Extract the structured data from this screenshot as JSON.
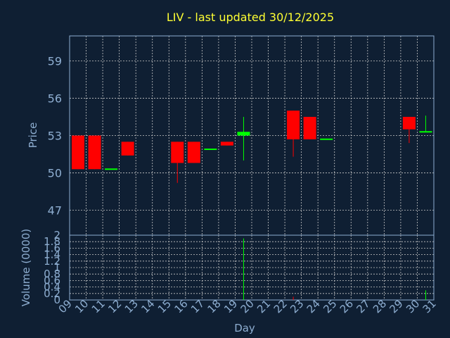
{
  "colors": {
    "background": "#0f1f33",
    "title": "#ffff33",
    "axis_text": "#8eaed1",
    "frame": "#8eaed1",
    "grid": "#c8c8c8",
    "up": "#00ff00",
    "down": "#ff0000"
  },
  "chart_data": {
    "type": "candlestick",
    "title": "LIV - last updated 30/12/2025",
    "price_panel": {
      "ylabel": "Price",
      "ylim": [
        45,
        61
      ],
      "yticks": [
        47,
        50,
        53,
        56,
        59
      ],
      "grid": true
    },
    "volume_panel": {
      "ylabel": "Volume (0000)",
      "ylim": [
        0,
        2
      ],
      "yticks": [
        0,
        0.2,
        0.4,
        0.6,
        0.8,
        1,
        1.2,
        1.4,
        1.6,
        1.8,
        2
      ],
      "ytick_labels": [
        "0",
        "0.2",
        "0.4",
        "0.6",
        "0.8",
        "1",
        "1.2",
        "1.4",
        "1.6",
        "1.8",
        "2"
      ],
      "grid": true
    },
    "xlabel": "Day",
    "xlim": [
      9,
      31
    ],
    "xticks": [
      9,
      10,
      11,
      12,
      13,
      14,
      15,
      16,
      17,
      18,
      19,
      20,
      21,
      22,
      23,
      24,
      25,
      26,
      27,
      28,
      29,
      30,
      31
    ],
    "xtick_labels": [
      "09",
      "10",
      "11",
      "12",
      "13",
      "14",
      "15",
      "16",
      "17",
      "18",
      "19",
      "20",
      "21",
      "22",
      "23",
      "24",
      "25",
      "26",
      "27",
      "28",
      "29",
      "30",
      "31"
    ],
    "candles": [
      {
        "day": 9,
        "open": 53.0,
        "high": 53.0,
        "low": 50.3,
        "close": 50.3,
        "volume": 0.0
      },
      {
        "day": 10,
        "open": 53.0,
        "high": 53.0,
        "low": 50.3,
        "close": 50.3,
        "volume": 0.0
      },
      {
        "day": 11,
        "open": 50.3,
        "high": 50.3,
        "low": 50.3,
        "close": 50.3,
        "volume": 0.0
      },
      {
        "day": 12,
        "open": 52.5,
        "high": 52.5,
        "low": 51.4,
        "close": 51.4,
        "volume": 0.0
      },
      {
        "day": 15,
        "open": 52.5,
        "high": 52.5,
        "low": 49.2,
        "close": 50.8,
        "volume": 0.0
      },
      {
        "day": 16,
        "open": 52.5,
        "high": 52.5,
        "low": 50.8,
        "close": 50.8,
        "volume": 0.0
      },
      {
        "day": 17,
        "open": 51.9,
        "high": 51.9,
        "low": 51.9,
        "close": 51.9,
        "volume": 0.0
      },
      {
        "day": 18,
        "open": 52.5,
        "high": 52.5,
        "low": 52.2,
        "close": 52.2,
        "volume": 0.0
      },
      {
        "day": 19,
        "open": 53.0,
        "high": 54.5,
        "low": 51.0,
        "close": 53.3,
        "volume": 1.9
      },
      {
        "day": 22,
        "open": 55.0,
        "high": 55.0,
        "low": 51.3,
        "close": 52.7,
        "volume": 0.1
      },
      {
        "day": 23,
        "open": 54.5,
        "high": 54.5,
        "low": 52.7,
        "close": 52.7,
        "volume": 0.0
      },
      {
        "day": 24,
        "open": 52.7,
        "high": 52.7,
        "low": 52.7,
        "close": 52.7,
        "volume": 0.0
      },
      {
        "day": 29,
        "open": 54.5,
        "high": 54.5,
        "low": 52.4,
        "close": 53.5,
        "volume": 0.0
      },
      {
        "day": 30,
        "open": 53.3,
        "high": 54.6,
        "low": 53.3,
        "close": 53.3,
        "volume": 0.3
      }
    ]
  }
}
